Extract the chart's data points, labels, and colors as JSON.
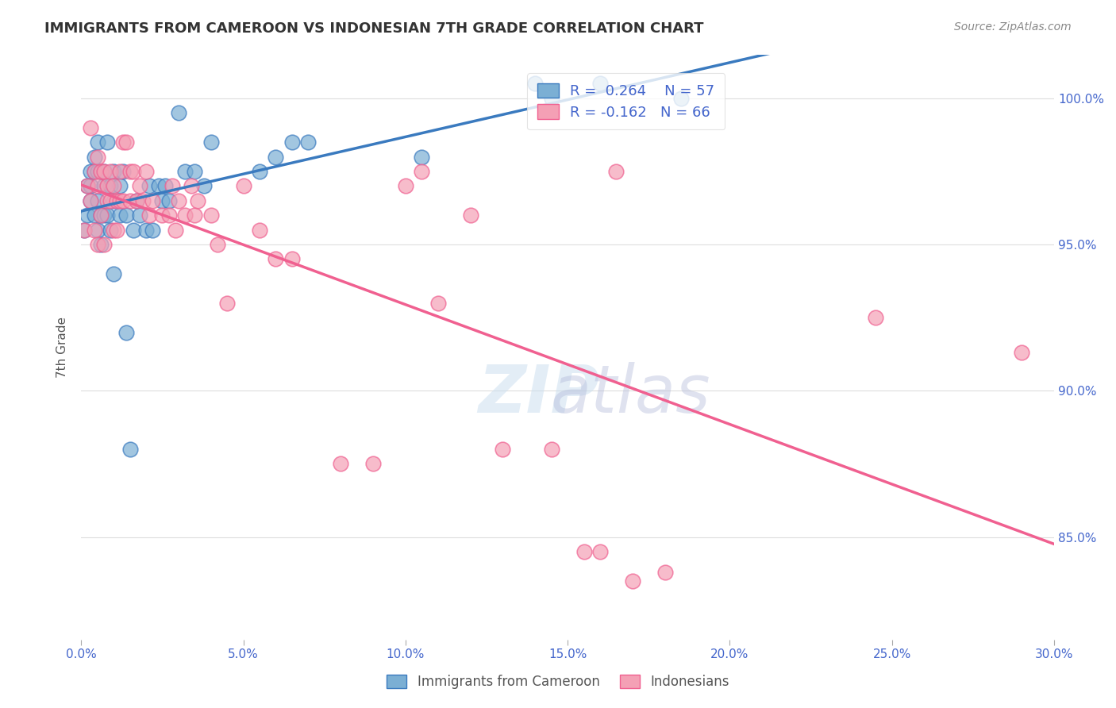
{
  "title": "IMMIGRANTS FROM CAMEROON VS INDONESIAN 7TH GRADE CORRELATION CHART",
  "source": "Source: ZipAtlas.com",
  "ylabel": "7th Grade",
  "ytick_labels": [
    "100.0%",
    "95.0%",
    "90.0%",
    "85.0%"
  ],
  "ytick_values": [
    1.0,
    0.95,
    0.9,
    0.85
  ],
  "xmin": 0.0,
  "xmax": 0.3,
  "ymin": 0.815,
  "ymax": 1.015,
  "legend_r_blue": "R =  0.264",
  "legend_n_blue": "N = 57",
  "legend_r_pink": "R = -0.162",
  "legend_n_pink": "N = 66",
  "blue_color": "#7bafd4",
  "pink_color": "#f4a0b5",
  "blue_line_color": "#3a7abf",
  "pink_line_color": "#f06090",
  "background_color": "#ffffff",
  "grid_color": "#dddddd",
  "title_fontsize": 13,
  "source_fontsize": 10,
  "axis_label_color": "#4466cc",
  "blue_scatter_x": [
    0.001,
    0.002,
    0.002,
    0.003,
    0.003,
    0.003,
    0.004,
    0.004,
    0.004,
    0.005,
    0.005,
    0.005,
    0.005,
    0.006,
    0.006,
    0.006,
    0.007,
    0.007,
    0.007,
    0.008,
    0.008,
    0.008,
    0.009,
    0.009,
    0.01,
    0.01,
    0.01,
    0.012,
    0.012,
    0.013,
    0.014,
    0.014,
    0.015,
    0.016,
    0.017,
    0.018,
    0.02,
    0.021,
    0.022,
    0.024,
    0.025,
    0.026,
    0.027,
    0.03,
    0.032,
    0.035,
    0.038,
    0.04,
    0.055,
    0.06,
    0.065,
    0.07,
    0.105,
    0.14,
    0.145,
    0.16,
    0.185
  ],
  "blue_scatter_y": [
    0.955,
    0.97,
    0.96,
    0.975,
    0.965,
    0.97,
    0.98,
    0.975,
    0.96,
    0.985,
    0.975,
    0.965,
    0.955,
    0.975,
    0.96,
    0.95,
    0.975,
    0.97,
    0.96,
    0.985,
    0.97,
    0.96,
    0.97,
    0.955,
    0.975,
    0.965,
    0.94,
    0.97,
    0.96,
    0.975,
    0.96,
    0.92,
    0.88,
    0.955,
    0.965,
    0.96,
    0.955,
    0.97,
    0.955,
    0.97,
    0.965,
    0.97,
    0.965,
    0.995,
    0.975,
    0.975,
    0.97,
    0.985,
    0.975,
    0.98,
    0.985,
    0.985,
    0.98,
    1.005,
    1.0,
    1.005,
    1.0
  ],
  "pink_scatter_x": [
    0.001,
    0.002,
    0.003,
    0.003,
    0.004,
    0.004,
    0.005,
    0.005,
    0.005,
    0.006,
    0.006,
    0.007,
    0.007,
    0.008,
    0.008,
    0.009,
    0.009,
    0.01,
    0.01,
    0.011,
    0.011,
    0.012,
    0.012,
    0.013,
    0.013,
    0.014,
    0.015,
    0.015,
    0.016,
    0.017,
    0.018,
    0.019,
    0.02,
    0.021,
    0.022,
    0.025,
    0.027,
    0.028,
    0.029,
    0.03,
    0.032,
    0.034,
    0.035,
    0.036,
    0.04,
    0.042,
    0.045,
    0.05,
    0.055,
    0.06,
    0.065,
    0.08,
    0.09,
    0.1,
    0.105,
    0.11,
    0.12,
    0.13,
    0.145,
    0.155,
    0.16,
    0.165,
    0.17,
    0.18,
    0.245,
    0.29
  ],
  "pink_scatter_y": [
    0.955,
    0.97,
    0.99,
    0.965,
    0.975,
    0.955,
    0.98,
    0.97,
    0.95,
    0.975,
    0.96,
    0.975,
    0.95,
    0.97,
    0.965,
    0.975,
    0.965,
    0.97,
    0.955,
    0.965,
    0.955,
    0.975,
    0.965,
    0.985,
    0.965,
    0.985,
    0.975,
    0.965,
    0.975,
    0.965,
    0.97,
    0.965,
    0.975,
    0.96,
    0.965,
    0.96,
    0.96,
    0.97,
    0.955,
    0.965,
    0.96,
    0.97,
    0.96,
    0.965,
    0.96,
    0.95,
    0.93,
    0.97,
    0.955,
    0.945,
    0.945,
    0.875,
    0.875,
    0.97,
    0.975,
    0.93,
    0.96,
    0.88,
    0.88,
    0.845,
    0.845,
    0.975,
    0.835,
    0.838,
    0.925,
    0.913
  ]
}
